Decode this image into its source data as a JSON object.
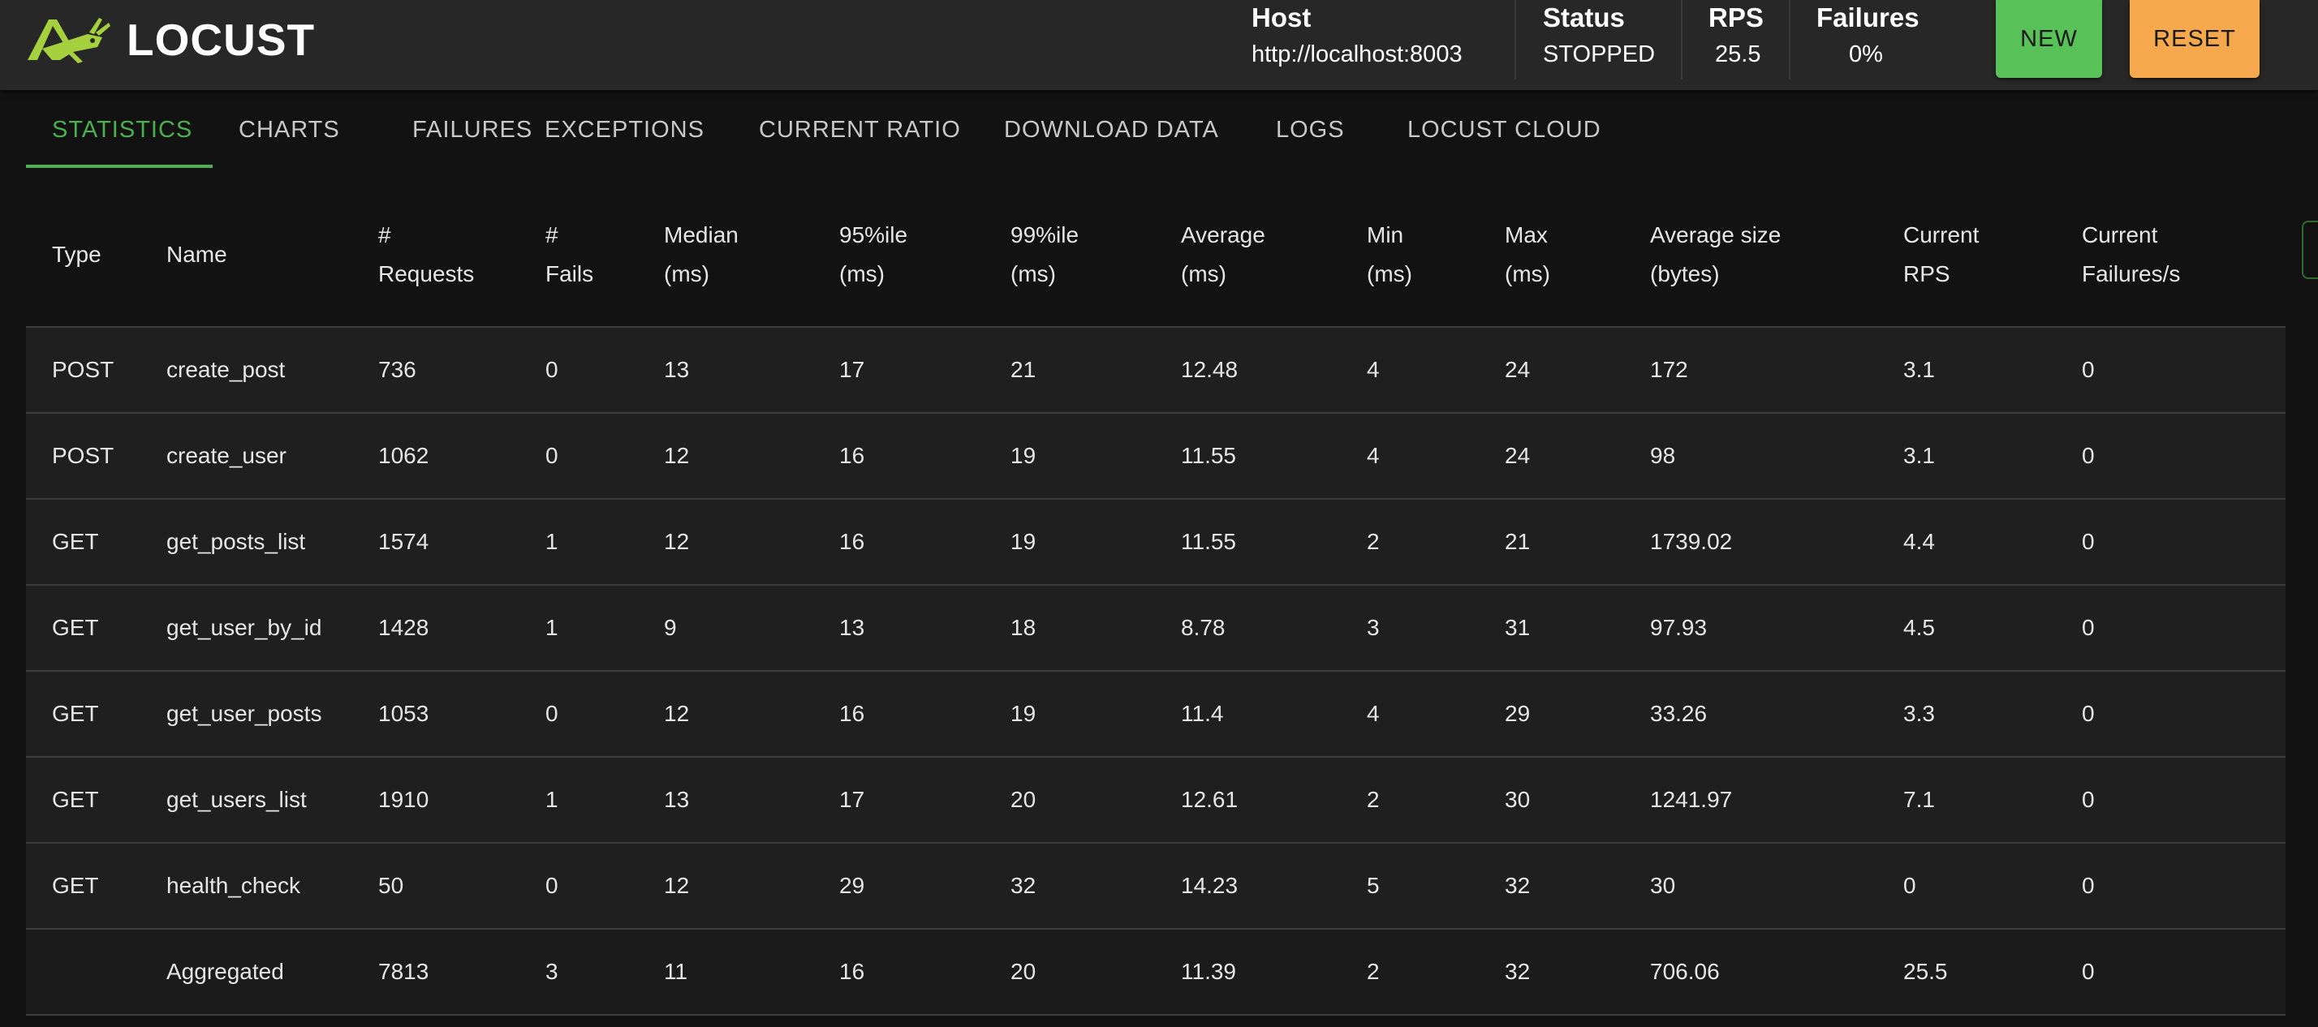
{
  "app": {
    "logo_text": "LOCUST",
    "brand_color": "#a6d13f",
    "accent_color": "#4caf50"
  },
  "header": {
    "host_label": "Host",
    "host_value": "http://localhost:8003",
    "status_label": "Status",
    "status_value": "STOPPED",
    "rps_label": "RPS",
    "rps_value": "25.5",
    "failures_label": "Failures",
    "failures_value": "0%",
    "new_button": "NEW",
    "reset_button": "RESET"
  },
  "tabs": [
    {
      "label": "STATISTICS",
      "active": true
    },
    {
      "label": "CHARTS",
      "active": false
    },
    {
      "label": "FAILURES",
      "active": false
    },
    {
      "label": "EXCEPTIONS",
      "active": false
    },
    {
      "label": "CURRENT RATIO",
      "active": false
    },
    {
      "label": "DOWNLOAD DATA",
      "active": false
    },
    {
      "label": "LOGS",
      "active": false
    },
    {
      "label": "LOCUST CLOUD",
      "active": false
    }
  ],
  "table": {
    "columns": [
      [
        "Type"
      ],
      [
        "Name"
      ],
      [
        "#",
        "Requests"
      ],
      [
        "#",
        "Fails"
      ],
      [
        "Median",
        "(ms)"
      ],
      [
        "95%ile",
        "(ms)"
      ],
      [
        "99%ile",
        "(ms)"
      ],
      [
        "Average",
        "(ms)"
      ],
      [
        "Min",
        "(ms)"
      ],
      [
        "Max",
        "(ms)"
      ],
      [
        "Average size",
        "(bytes)"
      ],
      [
        "Current",
        "RPS"
      ],
      [
        "Current",
        "Failures/s"
      ]
    ],
    "rows": [
      [
        "POST",
        "create_post",
        "736",
        "0",
        "13",
        "17",
        "21",
        "12.48",
        "4",
        "24",
        "172",
        "3.1",
        "0"
      ],
      [
        "POST",
        "create_user",
        "1062",
        "0",
        "12",
        "16",
        "19",
        "11.55",
        "4",
        "24",
        "98",
        "3.1",
        "0"
      ],
      [
        "GET",
        "get_posts_list",
        "1574",
        "1",
        "12",
        "16",
        "19",
        "11.55",
        "2",
        "21",
        "1739.02",
        "4.4",
        "0"
      ],
      [
        "GET",
        "get_user_by_id",
        "1428",
        "1",
        "9",
        "13",
        "18",
        "8.78",
        "3",
        "31",
        "97.93",
        "4.5",
        "0"
      ],
      [
        "GET",
        "get_user_posts",
        "1053",
        "0",
        "12",
        "16",
        "19",
        "11.4",
        "4",
        "29",
        "33.26",
        "3.3",
        "0"
      ],
      [
        "GET",
        "get_users_list",
        "1910",
        "1",
        "13",
        "17",
        "20",
        "12.61",
        "2",
        "30",
        "1241.97",
        "7.1",
        "0"
      ],
      [
        "GET",
        "health_check",
        "50",
        "0",
        "12",
        "29",
        "32",
        "14.23",
        "5",
        "32",
        "30",
        "0",
        "0"
      ],
      [
        "",
        "Aggregated",
        "7813",
        "3",
        "11",
        "16",
        "20",
        "11.39",
        "2",
        "32",
        "706.06",
        "25.5",
        "0"
      ]
    ]
  }
}
